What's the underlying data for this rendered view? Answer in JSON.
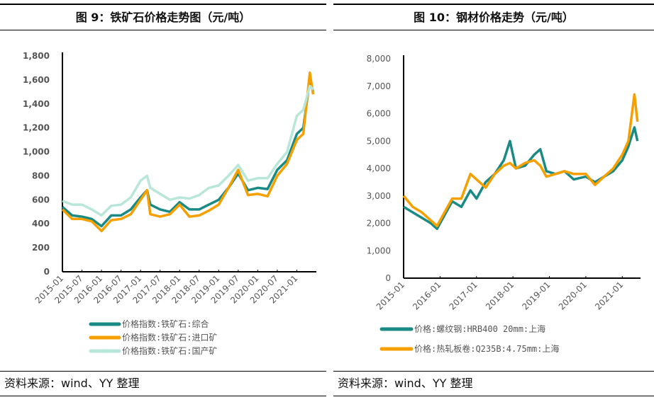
{
  "chart_data": [
    {
      "type": "line",
      "title": "图 9：铁矿石价格走势图（元/吨）",
      "source": "资料来源：wind、YY 整理",
      "ylim": [
        0,
        1800
      ],
      "yticks": [
        0,
        200,
        400,
        600,
        800,
        "1,000",
        "1,200",
        "1,400",
        "1,600",
        "1,800"
      ],
      "xticks": [
        "2015-01",
        "2015-07",
        "2016-01",
        "2016-07",
        "2017-01",
        "2017-07",
        "2018-01",
        "2018-07",
        "2019-01",
        "2019-07",
        "2020-01",
        "2020-07",
        "2021-01"
      ],
      "xrange": [
        "2015-01",
        "2021-07"
      ],
      "legend": "bottom",
      "x": [
        "2015-01",
        "2015-04",
        "2015-07",
        "2015-10",
        "2016-01",
        "2016-04",
        "2016-07",
        "2016-10",
        "2017-01",
        "2017-03",
        "2017-04",
        "2017-07",
        "2017-10",
        "2018-01",
        "2018-04",
        "2018-07",
        "2018-10",
        "2019-01",
        "2019-04",
        "2019-07",
        "2019-10",
        "2020-01",
        "2020-04",
        "2020-07",
        "2020-10",
        "2021-01",
        "2021-03",
        "2021-05",
        "2021-06"
      ],
      "series": [
        {
          "name": "价格指数:铁矿石:综合",
          "color": "#1a8a84",
          "values": [
            540,
            470,
            460,
            440,
            380,
            470,
            470,
            520,
            620,
            680,
            560,
            520,
            500,
            580,
            520,
            520,
            560,
            600,
            700,
            820,
            680,
            700,
            690,
            850,
            930,
            1150,
            1200,
            1600,
            1500
          ]
        },
        {
          "name": "价格指数:铁矿石:进口矿",
          "color": "#f5a000",
          "values": [
            520,
            440,
            440,
            420,
            340,
            430,
            440,
            480,
            600,
            680,
            480,
            460,
            480,
            560,
            460,
            470,
            510,
            560,
            700,
            850,
            640,
            650,
            630,
            800,
            900,
            1100,
            1150,
            1660,
            1480
          ]
        },
        {
          "name": "价格指数:铁矿石:国产矿",
          "color": "#b8e6d8",
          "values": [
            590,
            560,
            560,
            520,
            470,
            550,
            560,
            620,
            760,
            800,
            700,
            650,
            600,
            620,
            610,
            640,
            700,
            720,
            800,
            890,
            760,
            780,
            780,
            900,
            1000,
            1300,
            1350,
            1550,
            1520
          ]
        }
      ]
    },
    {
      "type": "line",
      "title": "图 10：钢材价格走势（元/吨）",
      "source": "资料来源：wind、YY 整理",
      "ylim": [
        0,
        8000
      ],
      "yticks": [
        "0",
        "1,000",
        "2,000",
        "3,000",
        "4,000",
        "5,000",
        "6,000",
        "7,000",
        "8,000"
      ],
      "xticks": [
        "2015-01",
        "2016-01",
        "2017-01",
        "2018-01",
        "2019-01",
        "2020-01",
        "2021-01"
      ],
      "xrange": [
        "2015-01",
        "2021-07"
      ],
      "legend": "bottom",
      "x": [
        "2015-01",
        "2015-04",
        "2015-07",
        "2015-10",
        "2015-12",
        "2016-03",
        "2016-05",
        "2016-08",
        "2016-11",
        "2017-01",
        "2017-04",
        "2017-07",
        "2017-10",
        "2017-12",
        "2018-02",
        "2018-05",
        "2018-08",
        "2018-10",
        "2018-12",
        "2019-03",
        "2019-06",
        "2019-09",
        "2020-01",
        "2020-04",
        "2020-07",
        "2020-10",
        "2021-01",
        "2021-03",
        "2021-05",
        "2021-06"
      ],
      "series": [
        {
          "name": "价格:螺纹钢:HRB400 20mm:上海",
          "color": "#1a8a84",
          "values": [
            2600,
            2400,
            2200,
            2000,
            1800,
            2400,
            2800,
            2600,
            3200,
            2900,
            3500,
            3800,
            4300,
            5000,
            4000,
            4100,
            4500,
            4700,
            3900,
            3800,
            3900,
            3600,
            3700,
            3500,
            3700,
            3900,
            4300,
            4800,
            5500,
            5000
          ]
        },
        {
          "name": "价格:热轧板卷:Q235B:4.75mm:上海",
          "color": "#f5a000",
          "values": [
            3000,
            2600,
            2400,
            2100,
            1900,
            2500,
            2900,
            2900,
            3800,
            3600,
            3300,
            3800,
            4100,
            4200,
            4000,
            4200,
            4300,
            4100,
            3700,
            3800,
            3900,
            3800,
            3800,
            3400,
            3700,
            4000,
            4500,
            5000,
            6700,
            5700
          ]
        }
      ]
    }
  ]
}
